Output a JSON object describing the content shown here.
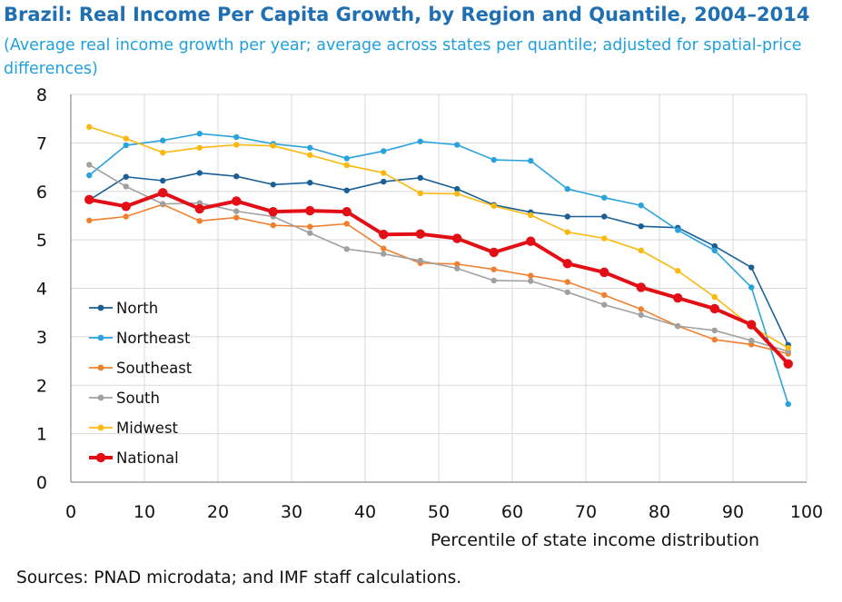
{
  "chart_data": {
    "type": "line",
    "title": "Brazil: Real Income Per Capita Growth, by Region and Quantile, 2004–2014",
    "subtitle": "(Average real income growth per year; average across states per quantile; adjusted for spatial-price differences)",
    "xlabel": "Percentile of state income distribution",
    "ylabel": "",
    "xlim": [
      0,
      100
    ],
    "ylim": [
      0,
      8
    ],
    "xticks": [
      0,
      10,
      20,
      30,
      40,
      50,
      60,
      70,
      80,
      90,
      100
    ],
    "yticks": [
      0,
      1,
      2,
      3,
      4,
      5,
      6,
      7,
      8
    ],
    "grid": true,
    "legend_position": "left",
    "x": [
      2.5,
      7.5,
      12.5,
      17.5,
      22.5,
      27.5,
      32.5,
      37.5,
      42.5,
      47.5,
      52.5,
      57.5,
      62.5,
      67.5,
      72.5,
      77.5,
      82.5,
      87.5,
      92.5,
      97.5
    ],
    "series": [
      {
        "name": "North",
        "color": "#1a5f96",
        "values": [
          5.82,
          6.3,
          6.22,
          6.38,
          6.31,
          6.14,
          6.18,
          6.02,
          6.2,
          6.28,
          6.05,
          5.72,
          5.57,
          5.48,
          5.48,
          5.28,
          5.25,
          4.87,
          4.43,
          2.83
        ]
      },
      {
        "name": "Northeast",
        "color": "#2aa3dc",
        "values": [
          6.33,
          6.95,
          7.05,
          7.19,
          7.12,
          6.98,
          6.9,
          6.68,
          6.83,
          7.03,
          6.96,
          6.65,
          6.63,
          6.05,
          5.87,
          5.71,
          5.2,
          4.78,
          4.02,
          1.61
        ]
      },
      {
        "name": "Southeast",
        "color": "#f07f2f",
        "values": [
          5.4,
          5.48,
          5.73,
          5.39,
          5.46,
          5.3,
          5.27,
          5.33,
          4.82,
          4.52,
          4.5,
          4.39,
          4.26,
          4.13,
          3.86,
          3.57,
          3.22,
          2.94,
          2.84,
          2.65
        ]
      },
      {
        "name": "South",
        "color": "#a0a0a0",
        "values": [
          6.55,
          6.1,
          5.74,
          5.76,
          5.59,
          5.48,
          5.14,
          4.81,
          4.71,
          4.57,
          4.41,
          4.16,
          4.15,
          3.92,
          3.66,
          3.45,
          3.22,
          3.13,
          2.92,
          2.7
        ]
      },
      {
        "name": "Midwest",
        "color": "#fbb80f",
        "values": [
          7.33,
          7.09,
          6.8,
          6.9,
          6.96,
          6.94,
          6.75,
          6.54,
          6.38,
          5.96,
          5.95,
          5.7,
          5.51,
          5.16,
          5.03,
          4.78,
          4.36,
          3.82,
          3.21,
          2.77
        ]
      },
      {
        "name": "National",
        "color": "#e30f16",
        "values": [
          5.83,
          5.69,
          5.97,
          5.64,
          5.8,
          5.58,
          5.6,
          5.58,
          5.11,
          5.12,
          5.03,
          4.74,
          4.97,
          4.51,
          4.33,
          4.02,
          3.8,
          3.58,
          3.25,
          2.44
        ]
      }
    ]
  },
  "source": "Sources: PNAD microdata; and IMF staff calculations."
}
